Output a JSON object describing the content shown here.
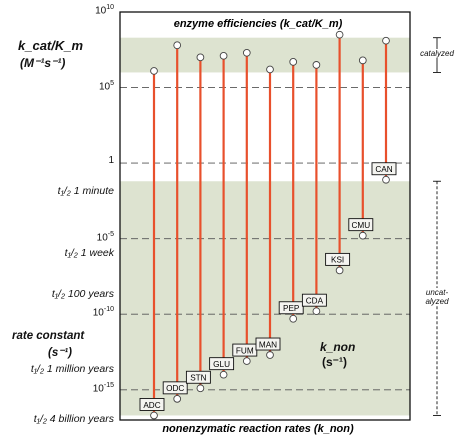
{
  "chart_data": {
    "type": "dumbbell",
    "title": "enzyme efficiencies (k_cat/K_m)",
    "bottom_title": "nonenzymatic reaction rates (k_non)",
    "ylabel_top": "k_cat/K_m",
    "ylabel_top_units": "(M⁻¹s⁻¹)",
    "ylabel_bottom": "rate constant",
    "ylabel_bottom_units": "(s⁻¹)",
    "inner_label": "k_non",
    "inner_label_units": "(s⁻¹)",
    "y_scale": "log10",
    "ylim_log10": [
      -17,
      10
    ],
    "y_ticks": [
      {
        "label": "10",
        "sup": "10",
        "value": 10
      },
      {
        "label": "10",
        "sup": "5",
        "value": 5
      },
      {
        "label": "1",
        "sup": "",
        "value": 0
      },
      {
        "label": "10",
        "sup": "-5",
        "value": -5
      },
      {
        "label": "10",
        "sup": "-10",
        "value": -10
      },
      {
        "label": "10",
        "sup": "-15",
        "value": -15
      }
    ],
    "half_life_labels": [
      {
        "text": "t₁/₂ 1 minute",
        "value": -1.9
      },
      {
        "text": "t₁/₂ 1 week",
        "value": -6.0
      },
      {
        "text": "t₁/₂ 100 years",
        "value": -8.7
      },
      {
        "text": "t₁/₂ 1 million years",
        "value": -13.7
      },
      {
        "text": "t₁/₂ 4 billion years",
        "value": -17.0
      }
    ],
    "regions": [
      {
        "label": "catalyzed",
        "from": 6.0,
        "to": 8.3
      },
      {
        "label": "uncat-\nalyzed",
        "from": -16.7,
        "to": -1.2
      }
    ],
    "categories": [
      "ADC",
      "ODC",
      "STN",
      "GLU",
      "FUM",
      "MAN",
      "PEP",
      "CDA",
      "KSI",
      "CMU",
      "CAN"
    ],
    "kcat_km_log10": [
      6.1,
      7.8,
      7.0,
      7.1,
      7.3,
      6.2,
      6.7,
      6.5,
      8.5,
      6.8,
      8.1
    ],
    "knon_log10": [
      -16.7,
      -15.6,
      -14.9,
      -14.0,
      -13.1,
      -12.7,
      -10.3,
      -9.8,
      -7.1,
      -4.8,
      -1.1
    ]
  },
  "colors": {
    "stem": "#e8502c",
    "band": "#dde3d0",
    "grid": "#555555",
    "box_fill": "#f4f4f0"
  }
}
